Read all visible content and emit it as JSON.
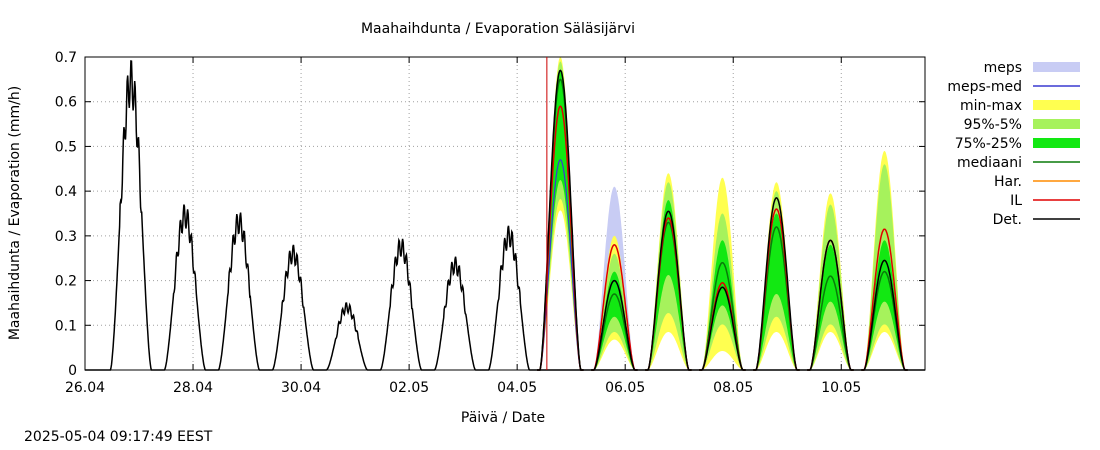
{
  "chart_data": {
    "type": "line",
    "title": "Maahaihdunta / Evaporation  Säläsijärvi",
    "xlabel": "Päivä / Date",
    "ylabel": "Maahaihdunta / Evaporation (mm/h)",
    "x_tick_labels": [
      "26.04",
      "28.04",
      "30.04",
      "02.05",
      "04.05",
      "06.05",
      "08.05",
      "10.05"
    ],
    "x_tick_days": [
      0,
      2,
      4,
      6,
      8,
      10,
      12,
      14
    ],
    "xlim_days": [
      0,
      15.55
    ],
    "ylim": [
      0,
      0.7
    ],
    "y_ticks": [
      0,
      0.1,
      0.2,
      0.3,
      0.4,
      0.5,
      0.6,
      0.7
    ],
    "grid": true,
    "legend_position": "right",
    "forecast_start_day": 8.55,
    "observed_peaks": [
      {
        "day": 0.85,
        "value": 0.645
      },
      {
        "day": 1.85,
        "value": 0.345
      },
      {
        "day": 2.85,
        "value": 0.33
      },
      {
        "day": 3.85,
        "value": 0.26
      },
      {
        "day": 4.85,
        "value": 0.14
      },
      {
        "day": 5.85,
        "value": 0.275
      },
      {
        "day": 6.85,
        "value": 0.235
      },
      {
        "day": 7.85,
        "value": 0.3
      }
    ],
    "forecast_days": [
      {
        "day": 8.8,
        "det": 0.67,
        "il": 0.59,
        "median": 0.65,
        "q25": 0.5,
        "q75": 0.67,
        "p5": 0.45,
        "p95": 0.69,
        "min": 0.42,
        "max": 0.7,
        "meps": 0.52,
        "meps_med": 0.47
      },
      {
        "day": 9.8,
        "det": 0.2,
        "il": 0.28,
        "median": 0.17,
        "q25": 0.14,
        "q75": 0.22,
        "p5": 0.1,
        "p95": 0.26,
        "min": 0.08,
        "max": 0.3,
        "meps": 0.41,
        "meps_med": 0.2
      },
      {
        "day": 10.8,
        "det": 0.355,
        "il": 0.34,
        "median": 0.33,
        "q25": 0.25,
        "q75": 0.38,
        "p5": 0.15,
        "p95": 0.42,
        "min": 0.1,
        "max": 0.44,
        "meps": null,
        "meps_med": null
      },
      {
        "day": 11.8,
        "det": 0.185,
        "il": 0.195,
        "median": 0.24,
        "q25": 0.17,
        "q75": 0.29,
        "p5": 0.12,
        "p95": 0.35,
        "min": 0.05,
        "max": 0.43,
        "meps": null,
        "meps_med": null
      },
      {
        "day": 12.8,
        "det": 0.385,
        "il": 0.36,
        "median": 0.32,
        "q25": 0.2,
        "q75": 0.35,
        "p5": 0.14,
        "p95": 0.4,
        "min": 0.1,
        "max": 0.42,
        "meps": null,
        "meps_med": null
      },
      {
        "day": 13.8,
        "det": 0.29,
        "il": 0.29,
        "median": 0.21,
        "q25": 0.18,
        "q75": 0.28,
        "p5": 0.12,
        "p95": 0.37,
        "min": 0.1,
        "max": 0.395,
        "meps": null,
        "meps_med": null
      },
      {
        "day": 14.8,
        "det": 0.245,
        "il": 0.315,
        "median": 0.22,
        "q25": 0.18,
        "q75": 0.29,
        "p5": 0.12,
        "p95": 0.46,
        "min": 0.1,
        "max": 0.49,
        "meps": null,
        "meps_med": null
      }
    ],
    "legend": [
      {
        "label": "meps",
        "kind": "band",
        "color": "#c8ccf4"
      },
      {
        "label": "meps-med",
        "kind": "line",
        "color": "#3a3ad0"
      },
      {
        "label": "min-max",
        "kind": "band",
        "color": "#ffff50"
      },
      {
        "label": "95%-5%",
        "kind": "band",
        "color": "#a6f25c"
      },
      {
        "label": "75%-25%",
        "kind": "band",
        "color": "#12e812"
      },
      {
        "label": "mediaani",
        "kind": "line",
        "color": "#0a7a0a"
      },
      {
        "label": "Har.",
        "kind": "line",
        "color": "#ff8c00"
      },
      {
        "label": "IL",
        "kind": "line",
        "color": "#e00000"
      },
      {
        "label": "Det.",
        "kind": "line",
        "color": "#000000"
      }
    ]
  },
  "footer": {
    "timestamp": "2025-05-04 09:17:49 EEST"
  }
}
